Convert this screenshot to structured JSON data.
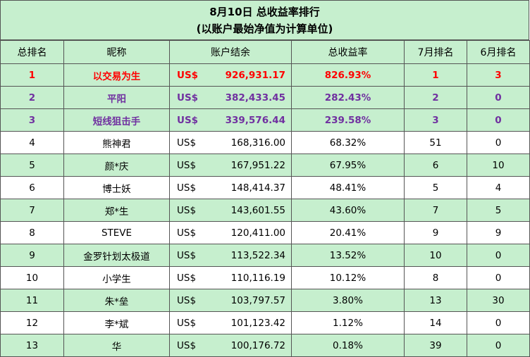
{
  "title": {
    "line1": "8月10日 总收益率排行",
    "line2": "(以账户最始净值为计算单位)"
  },
  "columns": [
    "总排名",
    "昵称",
    "账户结余",
    "总收益率",
    "7月排名",
    "6月排名"
  ],
  "currency": "US$",
  "rows": [
    {
      "rank": "1",
      "name": "以交易为生",
      "balance": "926,931.17",
      "return": "826.93%",
      "july": "1",
      "june": "3"
    },
    {
      "rank": "2",
      "name": "平阳",
      "balance": "382,433.45",
      "return": "282.43%",
      "july": "2",
      "june": "0"
    },
    {
      "rank": "3",
      "name": "短线狙击手",
      "balance": "339,576.44",
      "return": "239.58%",
      "july": "3",
      "june": "0"
    },
    {
      "rank": "4",
      "name": "熊神君",
      "balance": "168,316.00",
      "return": "68.32%",
      "july": "51",
      "june": "0"
    },
    {
      "rank": "5",
      "name": "颜*庆",
      "balance": "167,951.22",
      "return": "67.95%",
      "july": "6",
      "june": "10"
    },
    {
      "rank": "6",
      "name": "博士妖",
      "balance": "148,414.37",
      "return": "48.41%",
      "july": "5",
      "june": "4"
    },
    {
      "rank": "7",
      "name": "郑*生",
      "balance": "143,601.55",
      "return": "43.60%",
      "july": "7",
      "june": "5"
    },
    {
      "rank": "8",
      "name": "STEVE",
      "balance": "120,411.00",
      "return": "20.41%",
      "july": "9",
      "june": "9"
    },
    {
      "rank": "9",
      "name": "金罗针划太极道",
      "balance": "113,522.34",
      "return": "13.52%",
      "july": "10",
      "june": "0"
    },
    {
      "rank": "10",
      "name": "小学生",
      "balance": "110,116.19",
      "return": "10.12%",
      "july": "8",
      "june": "0"
    },
    {
      "rank": "11",
      "name": "朱*垒",
      "balance": "103,797.57",
      "return": "3.80%",
      "july": "13",
      "june": "30"
    },
    {
      "rank": "12",
      "name": "李*斌",
      "balance": "101,123.42",
      "return": "1.12%",
      "july": "14",
      "june": "0"
    },
    {
      "rank": "13",
      "name": "华",
      "balance": "100,176.72",
      "return": "0.18%",
      "july": "39",
      "june": "0"
    }
  ],
  "colors": {
    "header_bg": "#c6efce",
    "top1": "#ff0000",
    "top2_3": "#7030a0"
  }
}
